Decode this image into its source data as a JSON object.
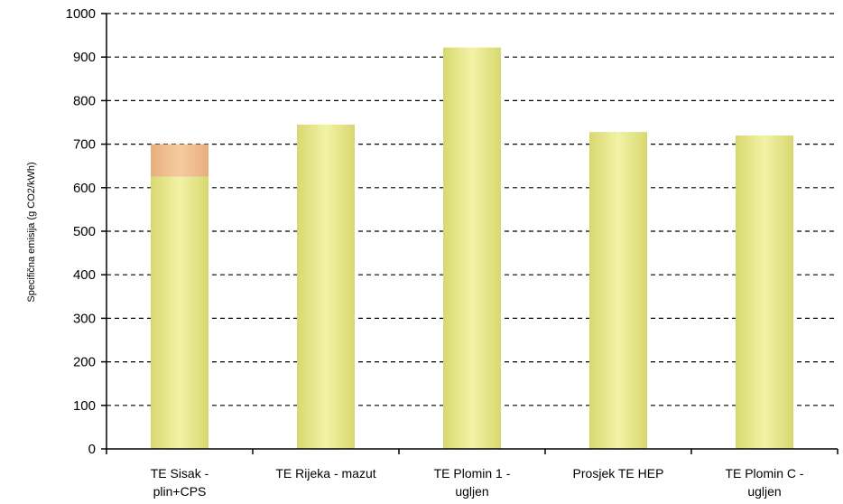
{
  "chart_data": {
    "type": "bar",
    "title": "",
    "xlabel": "",
    "ylabel": "Specifična emisija (g CO2/kWh)",
    "ylim": [
      0,
      1000
    ],
    "yticks": [
      0,
      100,
      200,
      300,
      400,
      500,
      600,
      700,
      800,
      900,
      1000
    ],
    "grid": true,
    "categories": [
      [
        "TE Sisak -",
        "plin+CPS"
      ],
      [
        "TE Rijeka - mazut"
      ],
      [
        "TE Plomin 1 -",
        "ugljen"
      ],
      [
        "Prosjek TE HEP"
      ],
      [
        "TE Plomin C -",
        "ugljen"
      ]
    ],
    "series": [
      {
        "values": [
          625,
          745,
          922,
          728,
          720
        ],
        "color": "#E8E890"
      },
      {
        "values": [
          75,
          0,
          0,
          0,
          0
        ],
        "color": "#F4C496"
      }
    ]
  }
}
